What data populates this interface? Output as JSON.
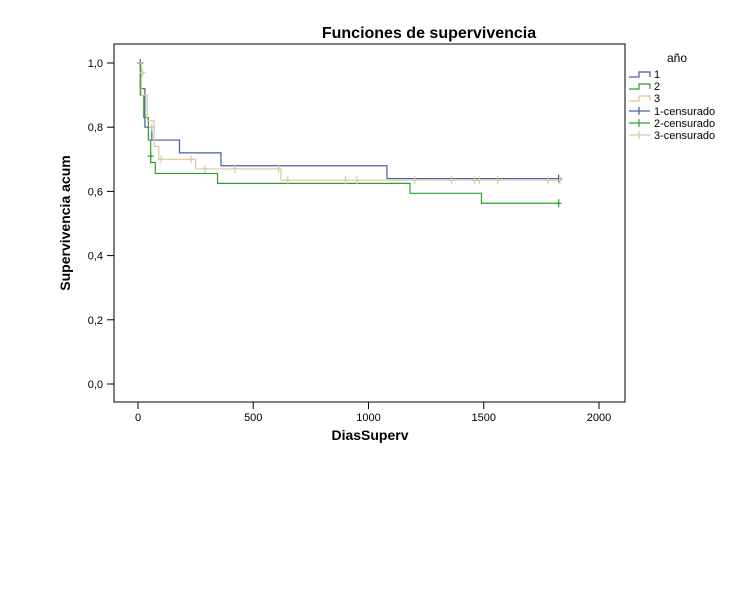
{
  "chart_data": {
    "type": "line",
    "title": "Funciones de supervivencia",
    "xlabel": "DiasSuperv",
    "ylabel": "Supervivencia acum",
    "xlim": [
      0,
      2000
    ],
    "ylim": [
      0,
      1.0
    ],
    "x_ticks": [
      0,
      500,
      1000,
      1500,
      2000
    ],
    "x_tick_labels": [
      "0",
      "500",
      "1000",
      "1500",
      "2000"
    ],
    "y_ticks": [
      0,
      0.2,
      0.4,
      0.6,
      0.8,
      1.0
    ],
    "y_tick_labels": [
      "0,0",
      "0,2",
      "0,4",
      "0,6",
      "0,8",
      "1,0"
    ],
    "grid": false,
    "legend_title": "año",
    "legend_placement": "right",
    "series": [
      {
        "name": "1",
        "censored_name": "1-censurado",
        "color": "#4a5ca8",
        "steps": [
          [
            0,
            1.0
          ],
          [
            10,
            0.92
          ],
          [
            30,
            0.8
          ],
          [
            60,
            0.76
          ],
          [
            180,
            0.72
          ],
          [
            360,
            0.68
          ],
          [
            1080,
            0.64
          ],
          [
            1830,
            0.64
          ]
        ],
        "censored": [
          [
            10,
            1.0
          ],
          [
            1825,
            0.64
          ]
        ]
      },
      {
        "name": "2",
        "censored_name": "2-censurado",
        "color": "#2ca02c",
        "steps": [
          [
            0,
            1.0
          ],
          [
            10,
            0.9
          ],
          [
            25,
            0.83
          ],
          [
            45,
            0.76
          ],
          [
            55,
            0.69
          ],
          [
            75,
            0.656
          ],
          [
            345,
            0.625
          ],
          [
            1180,
            0.594
          ],
          [
            1490,
            0.563
          ],
          [
            1830,
            0.563
          ]
        ],
        "censored": [
          [
            55,
            0.71
          ],
          [
            1825,
            0.563
          ]
        ]
      },
      {
        "name": "3",
        "censored_name": "3-censurado",
        "color": "#d8c9a0",
        "steps": [
          [
            0,
            1.0
          ],
          [
            15,
            0.9
          ],
          [
            40,
            0.82
          ],
          [
            70,
            0.74
          ],
          [
            90,
            0.7
          ],
          [
            250,
            0.67
          ],
          [
            620,
            0.635
          ],
          [
            1830,
            0.635
          ]
        ],
        "censored": [
          [
            20,
            0.97
          ],
          [
            60,
            0.8
          ],
          [
            100,
            0.7
          ],
          [
            230,
            0.7
          ],
          [
            290,
            0.67
          ],
          [
            420,
            0.67
          ],
          [
            610,
            0.67
          ],
          [
            650,
            0.635
          ],
          [
            900,
            0.635
          ],
          [
            950,
            0.635
          ],
          [
            1200,
            0.635
          ],
          [
            1360,
            0.635
          ],
          [
            1460,
            0.635
          ],
          [
            1480,
            0.635
          ],
          [
            1560,
            0.635
          ],
          [
            1780,
            0.635
          ],
          [
            1830,
            0.635
          ]
        ]
      }
    ]
  }
}
